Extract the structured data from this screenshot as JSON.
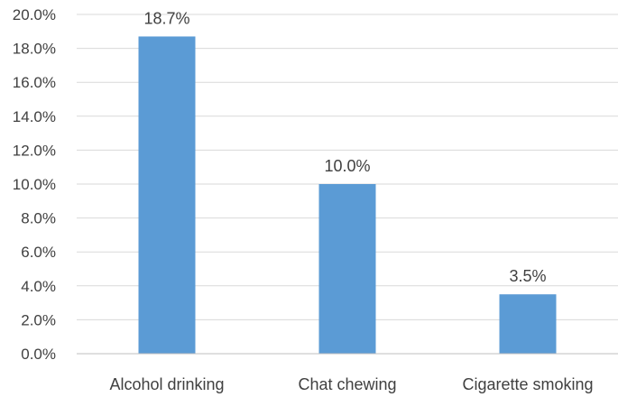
{
  "chart_data": {
    "type": "bar",
    "categories": [
      "Alcohol drinking",
      "Chat chewing",
      "Cigarette smoking"
    ],
    "values": [
      18.7,
      10.0,
      3.5
    ],
    "data_labels": [
      "18.7%",
      "10.0%",
      "3.5%"
    ],
    "y_ticks": [
      "0.0%",
      "2.0%",
      "4.0%",
      "6.0%",
      "8.0%",
      "10.0%",
      "12.0%",
      "14.0%",
      "16.0%",
      "18.0%",
      "20.0%"
    ],
    "ylim": [
      0,
      20
    ],
    "y_step": 2,
    "grid": true,
    "legend": "none",
    "title": "",
    "xlabel": "",
    "ylabel": "",
    "bar_color": "#5b9bd5"
  }
}
